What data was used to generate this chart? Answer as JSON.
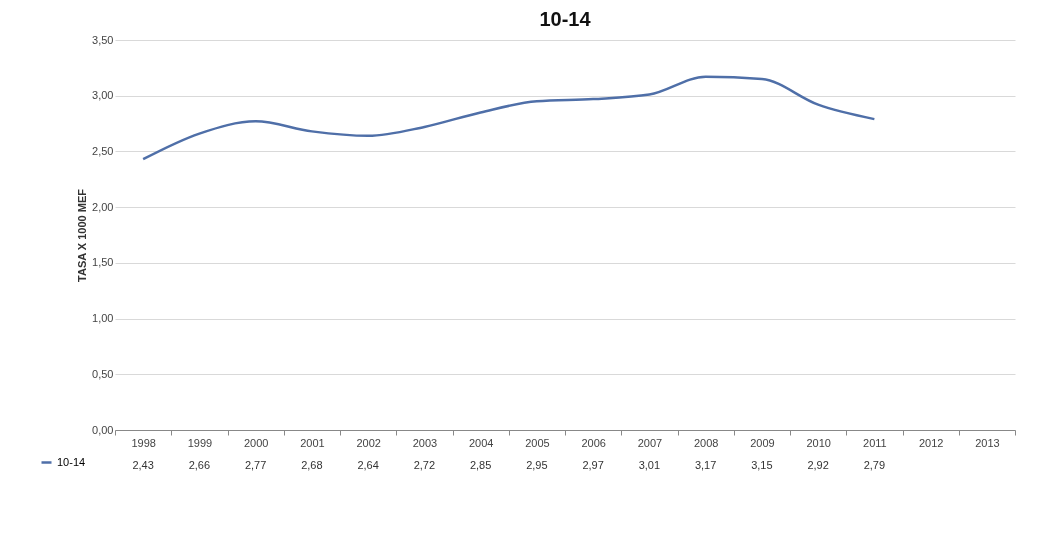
{
  "chart_data": {
    "type": "line",
    "title": "10-14",
    "ylabel": "TASA X 1000 MEF",
    "categories": [
      "1998",
      "1999",
      "2000",
      "2001",
      "2002",
      "2003",
      "2004",
      "2005",
      "2006",
      "2007",
      "2008",
      "2009",
      "2010",
      "2011",
      "2012",
      "2013"
    ],
    "series": [
      {
        "name": "10-14",
        "color": "#4f6fa8",
        "values": [
          2.43,
          2.66,
          2.77,
          2.68,
          2.64,
          2.72,
          2.85,
          2.95,
          2.97,
          3.01,
          3.17,
          3.15,
          2.92,
          2.79,
          null,
          null
        ],
        "value_labels": [
          "2,43",
          "2,66",
          "2,77",
          "2,68",
          "2,64",
          "2,72",
          "2,85",
          "2,95",
          "2,97",
          "3,01",
          "3,17",
          "3,15",
          "2,92",
          "2,79",
          null,
          null
        ]
      }
    ],
    "ylim": [
      0,
      3.5
    ],
    "yticks": [
      {
        "value": 0,
        "label": "0,00"
      },
      {
        "value": 0.5,
        "label": "0,50"
      },
      {
        "value": 1,
        "label": "1,00"
      },
      {
        "value": 1.5,
        "label": "1,50"
      },
      {
        "value": 2,
        "label": "2,00"
      },
      {
        "value": 2.5,
        "label": "2,50"
      },
      {
        "value": 3,
        "label": "3,00"
      },
      {
        "value": 3.5,
        "label": "3,50"
      }
    ],
    "grid": "y",
    "legend": "bottom left",
    "marker": "none",
    "line_style": "solid"
  }
}
